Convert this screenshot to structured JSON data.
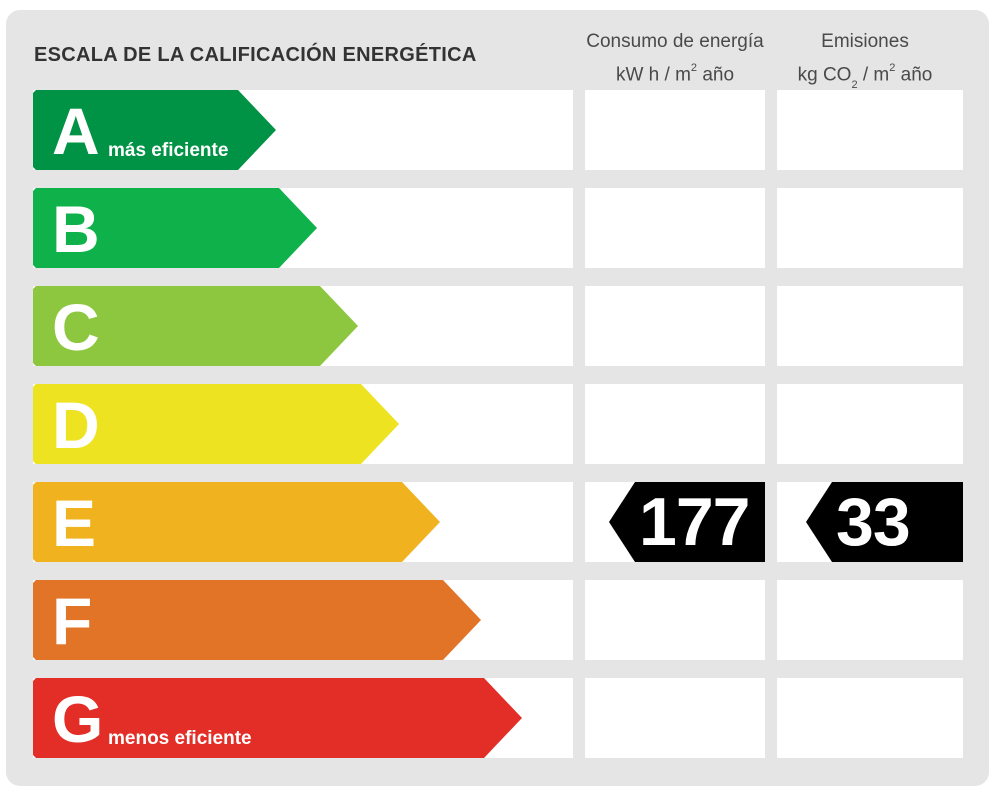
{
  "title": "ESCALA DE LA CALIFICACIÓN ENERGÉTICA",
  "columns": {
    "consumo": {
      "line1": "Consumo de energía",
      "unit_a": "kW h  / m",
      "unit_sup": "2",
      "unit_b": " año"
    },
    "emisiones": {
      "line1": "Emisiones",
      "unit_a": "kg CO",
      "unit_sub": "2",
      "unit_b": "  / m",
      "unit_sup": "2",
      "unit_c": " año"
    }
  },
  "ratings": [
    {
      "letter": "A",
      "sublabel": "más eficiente",
      "color": "#009245"
    },
    {
      "letter": "B",
      "sublabel": "",
      "color": "#0fb14b"
    },
    {
      "letter": "C",
      "sublabel": "",
      "color": "#8dc63f"
    },
    {
      "letter": "D",
      "sublabel": "",
      "color": "#ede320"
    },
    {
      "letter": "E",
      "sublabel": "",
      "color": "#f0b31f"
    },
    {
      "letter": "F",
      "sublabel": "",
      "color": "#e27428"
    },
    {
      "letter": "G",
      "sublabel": "menos eficiente",
      "color": "#e32d27"
    }
  ],
  "current": {
    "rating": "E",
    "consumo_value": "177",
    "emisiones_value": "33"
  }
}
